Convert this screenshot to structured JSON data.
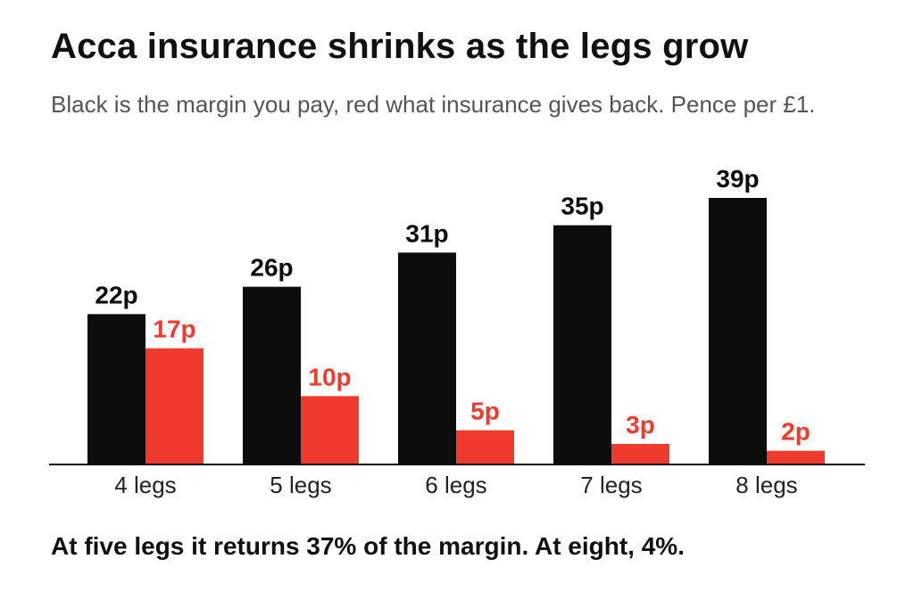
{
  "header": {
    "title": "Acca insurance shrinks as the legs grow",
    "subtitle": "Black is the margin you pay, red what insurance gives back. Pence per £1."
  },
  "footer": {
    "note": "At five legs it returns 37% of the margin. At eight, 4%."
  },
  "colors": {
    "margin": "#0d0d0d",
    "insurance": "#f03a2e",
    "axis": "#111111",
    "tick_label": "#222222"
  },
  "chart_data": {
    "type": "bar",
    "title": "Acca insurance shrinks as the legs grow",
    "subtitle": "Black is the margin you pay, red what insurance gives back. Pence per £1.",
    "categories": [
      "4 legs",
      "5 legs",
      "6 legs",
      "7 legs",
      "8 legs"
    ],
    "series": [
      {
        "key": "margin",
        "values": [
          22,
          26,
          31,
          35,
          39
        ],
        "labels": [
          "22p",
          "26p",
          "31p",
          "35p",
          "39p"
        ],
        "color": "#0d0d0d"
      },
      {
        "key": "insurance",
        "values": [
          17,
          10,
          5,
          3,
          2
        ],
        "labels": [
          "17p",
          "10p",
          "5p",
          "3p",
          "2p"
        ],
        "color": "#f03a2e"
      }
    ],
    "unit": "p",
    "ylim": [
      0,
      40
    ],
    "grid": false,
    "legend": "none"
  }
}
